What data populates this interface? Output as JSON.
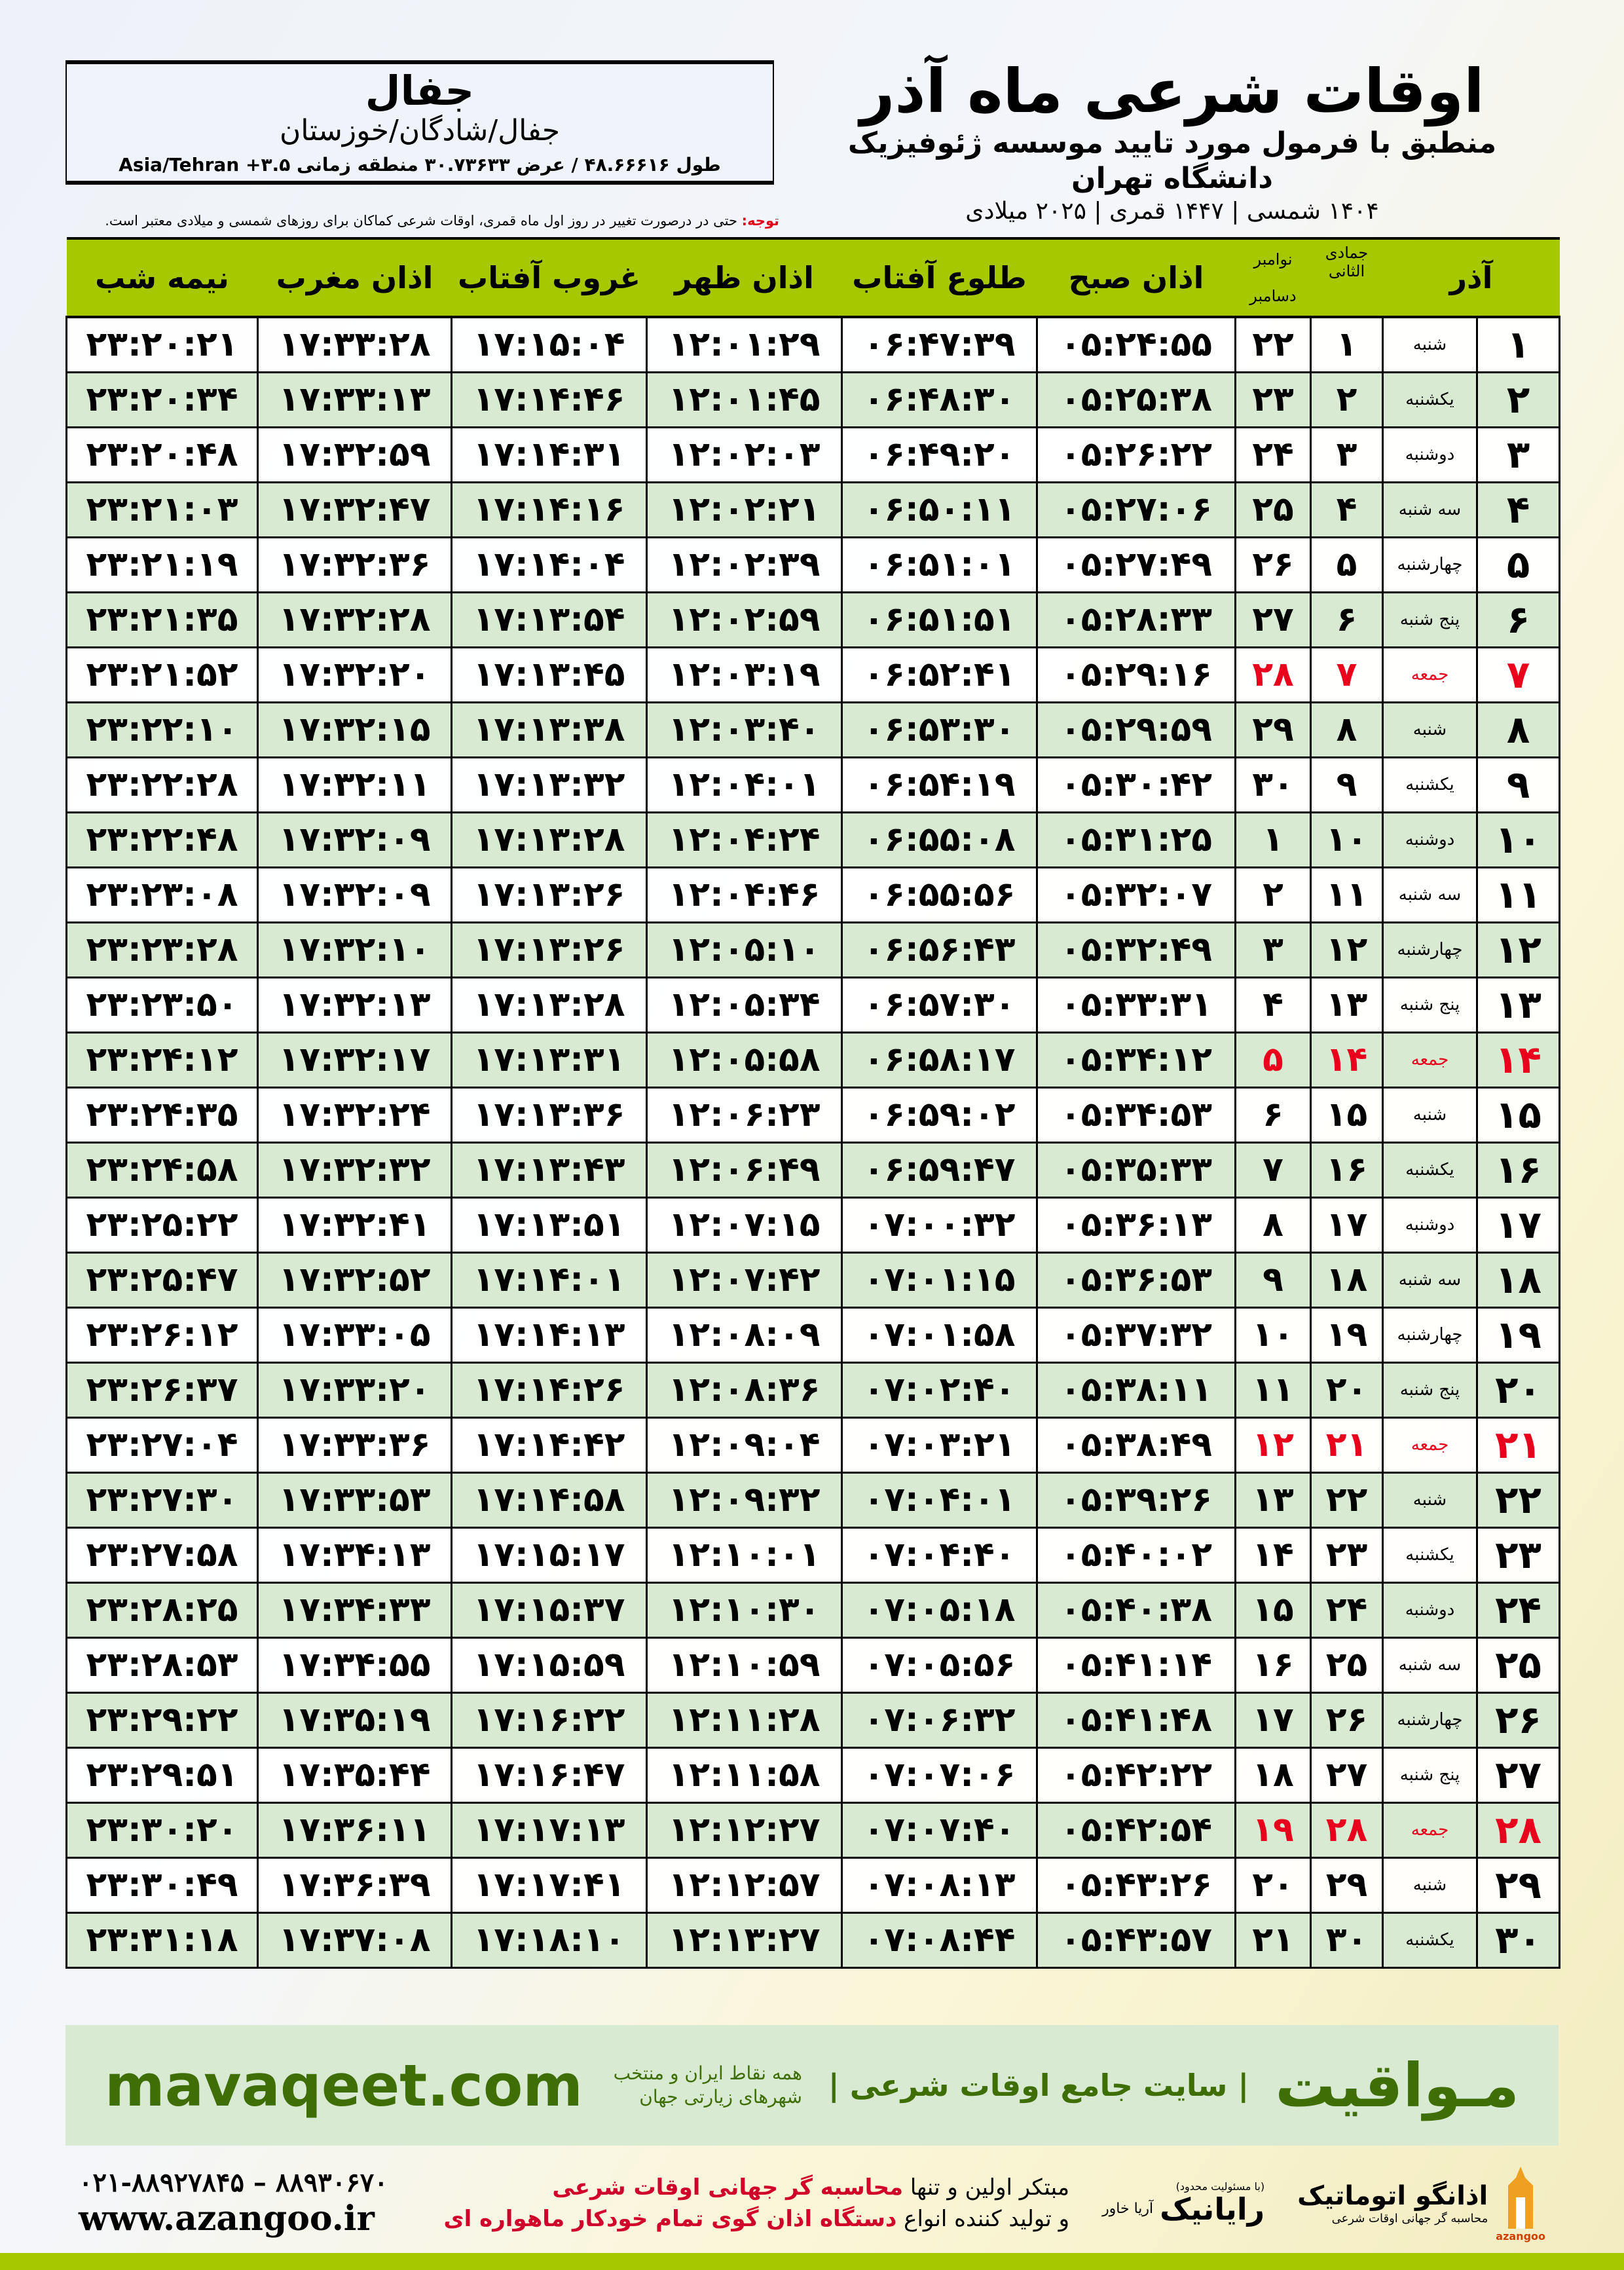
{
  "location": {
    "city": "جفال",
    "path": "جفال/شادگان/خوزستان",
    "coords": "طول ۴۸.۶۶۶۱۶ / عرض ۳۰.۷۳۶۳۳ منطقه زمانی ۳.۵+ Asia/Tehran"
  },
  "header": {
    "title": "اوقات شرعی ماه آذر",
    "subtitle": "منطبق با فرمول مورد تایید موسسه ژئوفیزیک دانشگاه تهران",
    "years": "۱۴۰۴ شمسی | ۱۴۴۷ قمری | ۲۰۲۵ میلادی"
  },
  "note": {
    "label": "توجه:",
    "text": " حتی در درصورت تغییر در روز اول ماه قمری، اوقات شرعی کماکان برای روزهای شمسی و میلادی معتبر است."
  },
  "columns": {
    "day": "آذر",
    "hijri": "جمادی الثانی",
    "greg_top": "نوامبر",
    "greg_bottom": "دسامبر",
    "fajr": "اذان صبح",
    "sunrise": "طلوع آفتاب",
    "dhuhr": "اذان ظهر",
    "sunset": "غروب آفتاب",
    "maghrib": "اذان مغرب",
    "midnight": "نیمه شب"
  },
  "colors": {
    "header_green": "#a6c800",
    "row_alt": "#d9ead3",
    "friday_red": "#e8001c",
    "brand_green": "#3f6e06"
  },
  "rows": [
    [
      "۱",
      "شنبه",
      "۱",
      "۲۲",
      "۰۵:۲۴:۵۵",
      "۰۶:۴۷:۳۹",
      "۱۲:۰۱:۲۹",
      "۱۷:۱۵:۰۴",
      "۱۷:۳۳:۲۸",
      "۲۳:۲۰:۲۱"
    ],
    [
      "۲",
      "یکشنبه",
      "۲",
      "۲۳",
      "۰۵:۲۵:۳۸",
      "۰۶:۴۸:۳۰",
      "۱۲:۰۱:۴۵",
      "۱۷:۱۴:۴۶",
      "۱۷:۳۳:۱۳",
      "۲۳:۲۰:۳۴"
    ],
    [
      "۳",
      "دوشنبه",
      "۳",
      "۲۴",
      "۰۵:۲۶:۲۲",
      "۰۶:۴۹:۲۰",
      "۱۲:۰۲:۰۳",
      "۱۷:۱۴:۳۱",
      "۱۷:۳۲:۵۹",
      "۲۳:۲۰:۴۸"
    ],
    [
      "۴",
      "سه شنبه",
      "۴",
      "۲۵",
      "۰۵:۲۷:۰۶",
      "۰۶:۵۰:۱۱",
      "۱۲:۰۲:۲۱",
      "۱۷:۱۴:۱۶",
      "۱۷:۳۲:۴۷",
      "۲۳:۲۱:۰۳"
    ],
    [
      "۵",
      "چهارشنبه",
      "۵",
      "۲۶",
      "۰۵:۲۷:۴۹",
      "۰۶:۵۱:۰۱",
      "۱۲:۰۲:۳۹",
      "۱۷:۱۴:۰۴",
      "۱۷:۳۲:۳۶",
      "۲۳:۲۱:۱۹"
    ],
    [
      "۶",
      "پنج شنبه",
      "۶",
      "۲۷",
      "۰۵:۲۸:۳۳",
      "۰۶:۵۱:۵۱",
      "۱۲:۰۲:۵۹",
      "۱۷:۱۳:۵۴",
      "۱۷:۳۲:۲۸",
      "۲۳:۲۱:۳۵"
    ],
    [
      "۷",
      "جمعه",
      "۷",
      "۲۸",
      "۰۵:۲۹:۱۶",
      "۰۶:۵۲:۴۱",
      "۱۲:۰۳:۱۹",
      "۱۷:۱۳:۴۵",
      "۱۷:۳۲:۲۰",
      "۲۳:۲۱:۵۲"
    ],
    [
      "۸",
      "شنبه",
      "۸",
      "۲۹",
      "۰۵:۲۹:۵۹",
      "۰۶:۵۳:۳۰",
      "۱۲:۰۳:۴۰",
      "۱۷:۱۳:۳۸",
      "۱۷:۳۲:۱۵",
      "۲۳:۲۲:۱۰"
    ],
    [
      "۹",
      "یکشنبه",
      "۹",
      "۳۰",
      "۰۵:۳۰:۴۲",
      "۰۶:۵۴:۱۹",
      "۱۲:۰۴:۰۱",
      "۱۷:۱۳:۳۲",
      "۱۷:۳۲:۱۱",
      "۲۳:۲۲:۲۸"
    ],
    [
      "۱۰",
      "دوشنبه",
      "۱۰",
      "۱",
      "۰۵:۳۱:۲۵",
      "۰۶:۵۵:۰۸",
      "۱۲:۰۴:۲۴",
      "۱۷:۱۳:۲۸",
      "۱۷:۳۲:۰۹",
      "۲۳:۲۲:۴۸"
    ],
    [
      "۱۱",
      "سه شنبه",
      "۱۱",
      "۲",
      "۰۵:۳۲:۰۷",
      "۰۶:۵۵:۵۶",
      "۱۲:۰۴:۴۶",
      "۱۷:۱۳:۲۶",
      "۱۷:۳۲:۰۹",
      "۲۳:۲۳:۰۸"
    ],
    [
      "۱۲",
      "چهارشنبه",
      "۱۲",
      "۳",
      "۰۵:۳۲:۴۹",
      "۰۶:۵۶:۴۳",
      "۱۲:۰۵:۱۰",
      "۱۷:۱۳:۲۶",
      "۱۷:۳۲:۱۰",
      "۲۳:۲۳:۲۸"
    ],
    [
      "۱۳",
      "پنج شنبه",
      "۱۳",
      "۴",
      "۰۵:۳۳:۳۱",
      "۰۶:۵۷:۳۰",
      "۱۲:۰۵:۳۴",
      "۱۷:۱۳:۲۸",
      "۱۷:۳۲:۱۳",
      "۲۳:۲۳:۵۰"
    ],
    [
      "۱۴",
      "جمعه",
      "۱۴",
      "۵",
      "۰۵:۳۴:۱۲",
      "۰۶:۵۸:۱۷",
      "۱۲:۰۵:۵۸",
      "۱۷:۱۳:۳۱",
      "۱۷:۳۲:۱۷",
      "۲۳:۲۴:۱۲"
    ],
    [
      "۱۵",
      "شنبه",
      "۱۵",
      "۶",
      "۰۵:۳۴:۵۳",
      "۰۶:۵۹:۰۲",
      "۱۲:۰۶:۲۳",
      "۱۷:۱۳:۳۶",
      "۱۷:۳۲:۲۴",
      "۲۳:۲۴:۳۵"
    ],
    [
      "۱۶",
      "یکشنبه",
      "۱۶",
      "۷",
      "۰۵:۳۵:۳۳",
      "۰۶:۵۹:۴۷",
      "۱۲:۰۶:۴۹",
      "۱۷:۱۳:۴۳",
      "۱۷:۳۲:۳۲",
      "۲۳:۲۴:۵۸"
    ],
    [
      "۱۷",
      "دوشنبه",
      "۱۷",
      "۸",
      "۰۵:۳۶:۱۳",
      "۰۷:۰۰:۳۲",
      "۱۲:۰۷:۱۵",
      "۱۷:۱۳:۵۱",
      "۱۷:۳۲:۴۱",
      "۲۳:۲۵:۲۲"
    ],
    [
      "۱۸",
      "سه شنبه",
      "۱۸",
      "۹",
      "۰۵:۳۶:۵۳",
      "۰۷:۰۱:۱۵",
      "۱۲:۰۷:۴۲",
      "۱۷:۱۴:۰۱",
      "۱۷:۳۲:۵۲",
      "۲۳:۲۵:۴۷"
    ],
    [
      "۱۹",
      "چهارشنبه",
      "۱۹",
      "۱۰",
      "۰۵:۳۷:۳۲",
      "۰۷:۰۱:۵۸",
      "۱۲:۰۸:۰۹",
      "۱۷:۱۴:۱۳",
      "۱۷:۳۳:۰۵",
      "۲۳:۲۶:۱۲"
    ],
    [
      "۲۰",
      "پنج شنبه",
      "۲۰",
      "۱۱",
      "۰۵:۳۸:۱۱",
      "۰۷:۰۲:۴۰",
      "۱۲:۰۸:۳۶",
      "۱۷:۱۴:۲۶",
      "۱۷:۳۳:۲۰",
      "۲۳:۲۶:۳۷"
    ],
    [
      "۲۱",
      "جمعه",
      "۲۱",
      "۱۲",
      "۰۵:۳۸:۴۹",
      "۰۷:۰۳:۲۱",
      "۱۲:۰۹:۰۴",
      "۱۷:۱۴:۴۲",
      "۱۷:۳۳:۳۶",
      "۲۳:۲۷:۰۴"
    ],
    [
      "۲۲",
      "شنبه",
      "۲۲",
      "۱۳",
      "۰۵:۳۹:۲۶",
      "۰۷:۰۴:۰۱",
      "۱۲:۰۹:۳۲",
      "۱۷:۱۴:۵۸",
      "۱۷:۳۳:۵۳",
      "۲۳:۲۷:۳۰"
    ],
    [
      "۲۳",
      "یکشنبه",
      "۲۳",
      "۱۴",
      "۰۵:۴۰:۰۲",
      "۰۷:۰۴:۴۰",
      "۱۲:۱۰:۰۱",
      "۱۷:۱۵:۱۷",
      "۱۷:۳۴:۱۳",
      "۲۳:۲۷:۵۸"
    ],
    [
      "۲۴",
      "دوشنبه",
      "۲۴",
      "۱۵",
      "۰۵:۴۰:۳۸",
      "۰۷:۰۵:۱۸",
      "۱۲:۱۰:۳۰",
      "۱۷:۱۵:۳۷",
      "۱۷:۳۴:۳۳",
      "۲۳:۲۸:۲۵"
    ],
    [
      "۲۵",
      "سه شنبه",
      "۲۵",
      "۱۶",
      "۰۵:۴۱:۱۴",
      "۰۷:۰۵:۵۶",
      "۱۲:۱۰:۵۹",
      "۱۷:۱۵:۵۹",
      "۱۷:۳۴:۵۵",
      "۲۳:۲۸:۵۳"
    ],
    [
      "۲۶",
      "چهارشنبه",
      "۲۶",
      "۱۷",
      "۰۵:۴۱:۴۸",
      "۰۷:۰۶:۳۲",
      "۱۲:۱۱:۲۸",
      "۱۷:۱۶:۲۲",
      "۱۷:۳۵:۱۹",
      "۲۳:۲۹:۲۲"
    ],
    [
      "۲۷",
      "پنج شنبه",
      "۲۷",
      "۱۸",
      "۰۵:۴۲:۲۲",
      "۰۷:۰۷:۰۶",
      "۱۲:۱۱:۵۸",
      "۱۷:۱۶:۴۷",
      "۱۷:۳۵:۴۴",
      "۲۳:۲۹:۵۱"
    ],
    [
      "۲۸",
      "جمعه",
      "۲۸",
      "۱۹",
      "۰۵:۴۲:۵۴",
      "۰۷:۰۷:۴۰",
      "۱۲:۱۲:۲۷",
      "۱۷:۱۷:۱۳",
      "۱۷:۳۶:۱۱",
      "۲۳:۳۰:۲۰"
    ],
    [
      "۲۹",
      "شنبه",
      "۲۹",
      "۲۰",
      "۰۵:۴۳:۲۶",
      "۰۷:۰۸:۱۳",
      "۱۲:۱۲:۵۷",
      "۱۷:۱۷:۴۱",
      "۱۷:۳۶:۳۹",
      "۲۳:۳۰:۴۹"
    ],
    [
      "۳۰",
      "یکشنبه",
      "۳۰",
      "۲۱",
      "۰۵:۴۳:۵۷",
      "۰۷:۰۸:۴۴",
      "۱۲:۱۳:۲۷",
      "۱۷:۱۸:۱۰",
      "۱۷:۳۷:۰۸",
      "۲۳:۳۱:۱۸"
    ]
  ],
  "footer": {
    "brand": "مـواقیت",
    "tagline": "| سایت جامع اوقات شرعی |",
    "sub": "همه نقاط ایران و منتخب شهرهای زیارتی جهان",
    "site": "mavaqeet.com"
  },
  "bottom": {
    "logo1": "اذانگو اتوماتیک",
    "logo1_sub": "محاسبه گر جهانی اوقات شرعی",
    "logo1_en": "azangoo",
    "logo2_note": "(با مسئولیت محدود)",
    "logo2": "رایانیک",
    "logo2_side": "آریا خاور",
    "promo_1a": "مبتکر اولین و تنها ",
    "promo_1b": "محاسبه گر جهانی اوقات شرعی",
    "promo_2a": "و تولید کننده انواع ",
    "promo_2b": "دستگاه اذان گوی تمام خودکار ماهواره ای",
    "phone": "۰۲۱-۸۸۹۲۷۸۴۵ – ۸۸۹۳۰۶۷۰",
    "web": "www.azangoo.ir"
  }
}
